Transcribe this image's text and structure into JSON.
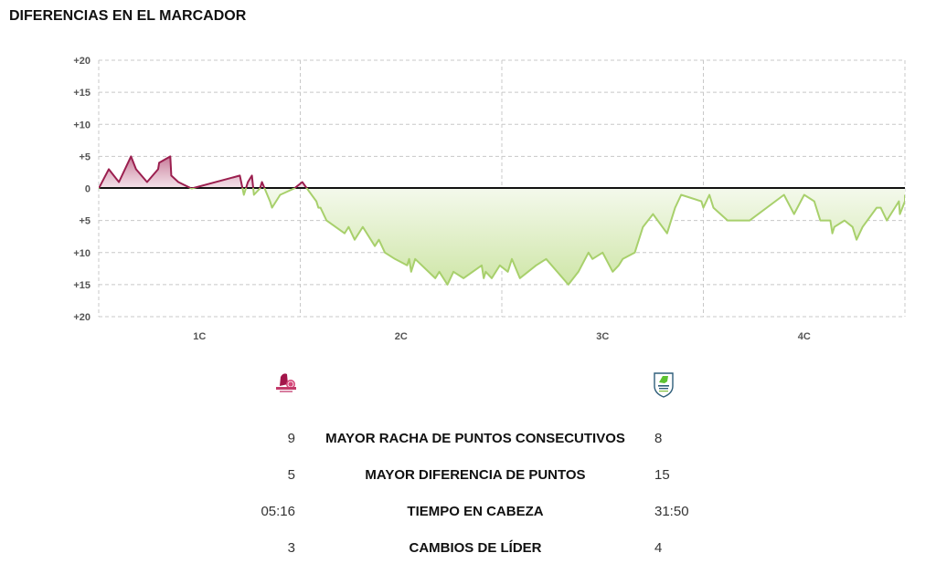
{
  "title": "DIFERENCIAS EN EL MARCADOR",
  "teams": {
    "home": {
      "logo": "home-team-logo",
      "color": "#9b1f4f"
    },
    "away": {
      "logo": "away-team-logo",
      "color": "#a8d06c"
    }
  },
  "stats": [
    {
      "label": "MAYOR RACHA DE PUNTOS CONSECUTIVOS",
      "home": "9",
      "away": "8"
    },
    {
      "label": "MAYOR DIFERENCIA DE PUNTOS",
      "home": "5",
      "away": "15"
    },
    {
      "label": "TIEMPO EN CABEZA",
      "home": "05:16",
      "away": "31:50"
    },
    {
      "label": "CAMBIOS DE LÍDER",
      "home": "3",
      "away": "4"
    }
  ],
  "chart_data": {
    "type": "area",
    "title": "DIFERENCIAS EN EL MARCADOR",
    "xlabel": "",
    "ylabel": "",
    "categories": [
      "1C",
      "2C",
      "3C",
      "4C"
    ],
    "yticks": [
      "+20",
      "+15",
      "+10",
      "+5",
      "0",
      "+5",
      "+10",
      "+15",
      "+20"
    ],
    "ylim": [
      -20,
      20
    ],
    "xlim": [
      0,
      40
    ],
    "grid": true,
    "legend": "none",
    "series": [
      {
        "name": "score_difference",
        "positive_color": "#9b1f4f",
        "negative_color": "#a8d06c",
        "x": [
          0,
          0.5,
          1.0,
          1.6,
          1.85,
          2.4,
          2.95,
          3.0,
          3.55,
          3.6,
          3.95,
          4.6,
          4.62,
          7.0,
          7.2,
          7.4,
          7.6,
          7.7,
          8.0,
          8.1,
          8.5,
          8.6,
          9.0,
          9.7,
          10.1,
          10.8,
          10.9,
          11.0,
          11.3,
          12.2,
          12.4,
          12.7,
          13.1,
          13.7,
          13.9,
          14.2,
          14.7,
          15.3,
          15.4,
          15.5,
          15.7,
          16.7,
          16.9,
          17.3,
          17.6,
          18.1,
          19.0,
          19.1,
          19.2,
          19.5,
          19.9,
          20.3,
          20.5,
          20.9,
          21.3,
          21.7,
          22.2,
          23.3,
          23.8,
          24.3,
          24.5,
          25.0,
          25.5,
          25.8,
          26.0,
          26.6,
          26.7,
          27.0,
          27.5,
          28.2,
          28.4,
          28.6,
          28.9,
          29.9,
          30.0,
          30.3,
          30.5,
          31.2,
          32.3,
          34.0,
          34.5,
          35.0,
          35.5,
          35.7,
          35.8,
          36.3,
          36.4,
          36.5,
          37.0,
          37.4,
          37.6,
          37.9,
          38.6,
          38.8,
          39.1,
          39.7,
          39.75,
          40.0,
          40.0
        ],
        "y": [
          0,
          3,
          1,
          5,
          3,
          1,
          3,
          4,
          5,
          2,
          1,
          0,
          0,
          2,
          -1,
          1,
          2,
          -1,
          0,
          1,
          -2,
          -3,
          -1,
          0,
          1,
          -2,
          -3,
          -3,
          -5,
          -7,
          -6,
          -8,
          -6,
          -9,
          -8,
          -10,
          -11,
          -12,
          -11,
          -13,
          -11,
          -14,
          -13,
          -15,
          -13,
          -14,
          -12,
          -14,
          -13,
          -14,
          -12,
          -13,
          -11,
          -14,
          -13,
          -12,
          -11,
          -15,
          -13,
          -10,
          -11,
          -10,
          -13,
          -12,
          -11,
          -10,
          -9,
          -6,
          -4,
          -7,
          -5,
          -3,
          -1,
          -2,
          -3,
          -1,
          -3,
          -5,
          -5,
          -1,
          -4,
          -1,
          -2,
          -4,
          -5,
          -5,
          -7,
          -6,
          -5,
          -6,
          -8,
          -6,
          -3,
          -3,
          -5,
          -2,
          -4,
          -2,
          -1
        ]
      }
    ]
  }
}
